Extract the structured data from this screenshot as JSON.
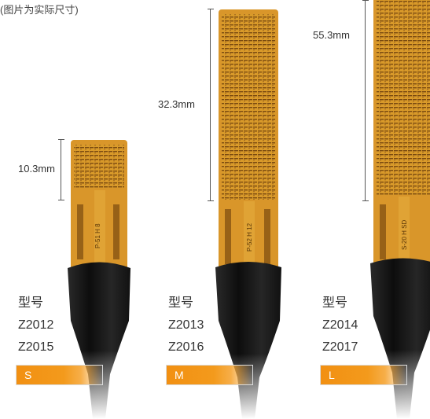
{
  "caption": "(图片为实际尺寸)",
  "colors": {
    "accent": "#f29012",
    "flex_copper": "#d38a1c",
    "cable": "#1a1a1a"
  },
  "products": [
    {
      "length_label": "10.3mm",
      "model_heading": "型号",
      "models": [
        "Z2012",
        "Z2015"
      ],
      "size": "S",
      "sensor_print": "P-51 H 8"
    },
    {
      "length_label": "32.3mm",
      "model_heading": "型号",
      "models": [
        "Z2013",
        "Z2016"
      ],
      "size": "M",
      "sensor_print": "P-52 H 12"
    },
    {
      "length_label": "55.3mm",
      "model_heading": "型号",
      "models": [
        "Z2014",
        "Z2017"
      ],
      "size": "L",
      "sensor_print": "S-20 H SD"
    }
  ]
}
